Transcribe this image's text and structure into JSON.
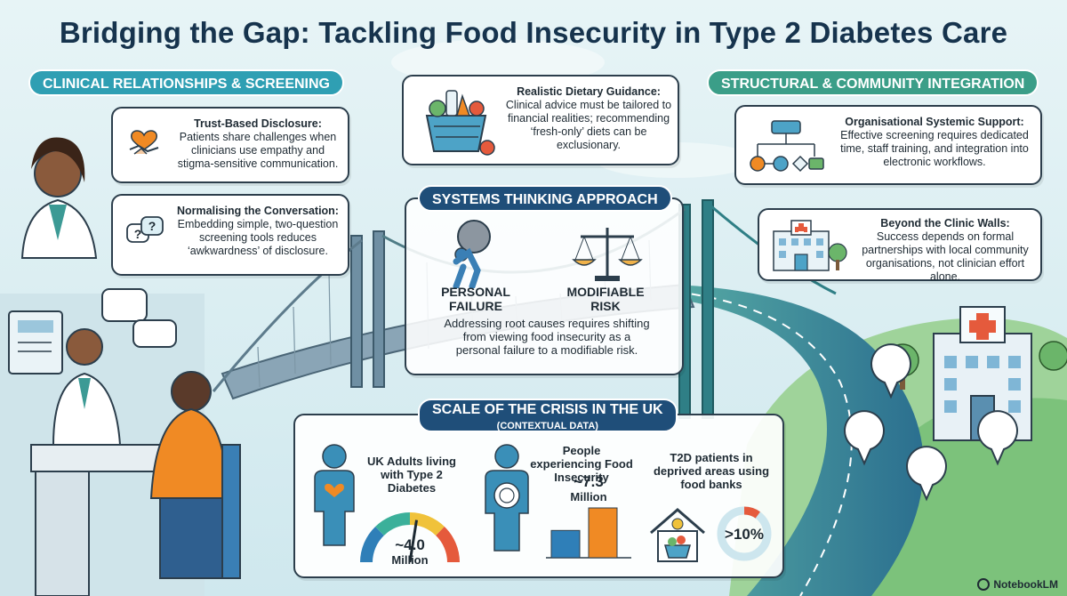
{
  "title": "Bridging the Gap: Tackling Food Insecurity in Type 2 Diabetes Care",
  "left_section": {
    "label": "CLINICAL RELATIONSHIPS & SCREENING",
    "cards": [
      {
        "heading": "Trust-Based Disclosure:",
        "body": "Patients share challenges when clinicians use empathy and stigma-sensitive communication.",
        "icon": "handshake-heart-icon"
      },
      {
        "heading": "Normalising the Conversation:",
        "body": "Embedding simple, two-question screening tools reduces ‘awkwardness’ of disclosure.",
        "icon": "speech-bubbles-question-icon"
      }
    ]
  },
  "top_center": {
    "heading": "Realistic Dietary Guidance:",
    "body": "Clinical advice must be tailored to financial realities; recommending ‘fresh-only’ diets can be exclusionary.",
    "icon": "grocery-basket-icon"
  },
  "systems": {
    "label": "SYSTEMS THINKING APPROACH",
    "left_label": "PERSONAL FAILURE",
    "right_label": "MODIFIABLE RISK",
    "body": "Addressing root causes requires shifting from viewing food insecurity as a personal failure to a modifiable risk."
  },
  "right_section": {
    "label": "STRUCTURAL & COMMUNITY INTEGRATION",
    "cards": [
      {
        "heading": "Organisational Systemic Support:",
        "body": "Effective screening requires dedicated time, staff training, and integration into electronic workflows.",
        "icon": "workflow-diagram-icon"
      },
      {
        "heading": "Beyond the Clinic Walls:",
        "body": "Success depends on formal partnerships with local community organisations, not clinician effort alone.",
        "icon": "hospital-building-icon"
      }
    ]
  },
  "scale": {
    "label": "SCALE OF THE CRISIS IN THE UK",
    "sublabel": "(CONTEXTUAL DATA)",
    "stats": [
      {
        "label": "UK Adults living with Type 2 Diabetes",
        "value": "~4.0",
        "unit": "Million",
        "gauge_fraction": 0.55
      },
      {
        "label": "People experiencing Food Insecurity",
        "value": "~7.3",
        "unit": "Million",
        "bars": [
          4.0,
          7.3
        ]
      },
      {
        "label": "T2D patients in deprived areas using food banks",
        "value": ">10%",
        "fraction": 0.1
      }
    ]
  },
  "footer": {
    "brand": "NotebookLM"
  },
  "colors": {
    "navy": "#16334d",
    "teal": "#2f9fb3",
    "green": "#3b9e88",
    "orange": "#f08a24",
    "blue": "#2f7fb8"
  }
}
